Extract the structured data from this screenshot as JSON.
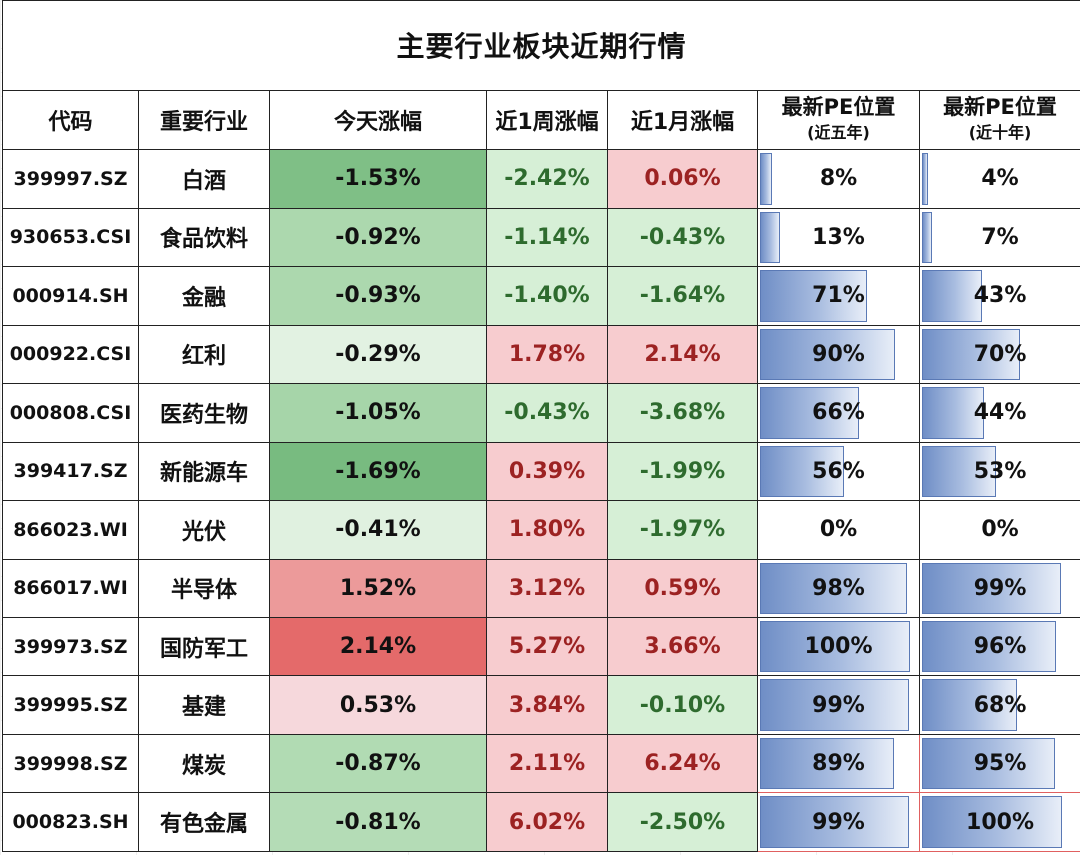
{
  "title": "主要行业板块近期行情",
  "headers": {
    "code": "代码",
    "industry": "重要行业",
    "today": "今天涨幅",
    "week": "近1周涨幅",
    "month": "近1月涨幅",
    "pe5_main": "最新PE位置",
    "pe5_sub": "(近五年)",
    "pe10_main": "最新PE位置",
    "pe10_sub": "(近十年)"
  },
  "colors": {
    "positive_text": "#9c2222",
    "negative_text": "#2e6b2e",
    "bar_fill": "#6f8ec6"
  },
  "rows": [
    {
      "code": "399997.SZ",
      "name": "白酒",
      "today": "-1.53%",
      "week": "-2.42%",
      "month": "0.06%",
      "pe5": "8%",
      "pe10": "4%",
      "pe5_val": 8,
      "pe10_val": 4,
      "today_bg": "#7fbf86",
      "week_bg": "#d6efd6",
      "month_bg": "#f7cccf"
    },
    {
      "code": "930653.CSI",
      "name": "食品饮料",
      "today": "-0.92%",
      "week": "-1.14%",
      "month": "-0.43%",
      "pe5": "13%",
      "pe10": "7%",
      "pe5_val": 13,
      "pe10_val": 7,
      "today_bg": "#acd8ae",
      "week_bg": "#d6efd6",
      "month_bg": "#d6efd6"
    },
    {
      "code": "000914.SH",
      "name": "金融",
      "today": "-0.93%",
      "week": "-1.40%",
      "month": "-1.64%",
      "pe5": "71%",
      "pe10": "43%",
      "pe5_val": 71,
      "pe10_val": 43,
      "today_bg": "#acd8ae",
      "week_bg": "#d6efd6",
      "month_bg": "#d6efd6"
    },
    {
      "code": "000922.CSI",
      "name": "红利",
      "today": "-0.29%",
      "week": "1.78%",
      "month": "2.14%",
      "pe5": "90%",
      "pe10": "70%",
      "pe5_val": 90,
      "pe10_val": 70,
      "today_bg": "#e2f2e2",
      "week_bg": "#f7cccf",
      "month_bg": "#f7cccf"
    },
    {
      "code": "000808.CSI",
      "name": "医药生物",
      "today": "-1.05%",
      "week": "-0.43%",
      "month": "-3.68%",
      "pe5": "66%",
      "pe10": "44%",
      "pe5_val": 66,
      "pe10_val": 44,
      "today_bg": "#a6d5a9",
      "week_bg": "#d6efd6",
      "month_bg": "#d6efd6"
    },
    {
      "code": "399417.SZ",
      "name": "新能源车",
      "today": "-1.69%",
      "week": "0.39%",
      "month": "-1.99%",
      "pe5": "56%",
      "pe10": "53%",
      "pe5_val": 56,
      "pe10_val": 53,
      "today_bg": "#78bb80",
      "week_bg": "#f7cccf",
      "month_bg": "#d6efd6"
    },
    {
      "code": "866023.WI",
      "name": "光伏",
      "today": "-0.41%",
      "week": "1.80%",
      "month": "-1.97%",
      "pe5": "0%",
      "pe10": "0%",
      "pe5_val": 0,
      "pe10_val": 0,
      "today_bg": "#e0f1e0",
      "week_bg": "#f7cccf",
      "month_bg": "#d6efd6"
    },
    {
      "code": "866017.WI",
      "name": "半导体",
      "today": "1.52%",
      "week": "3.12%",
      "month": "0.59%",
      "pe5": "98%",
      "pe10": "99%",
      "pe5_val": 98,
      "pe10_val": 99,
      "today_bg": "#ec9a9a",
      "week_bg": "#f7cccf",
      "month_bg": "#f7cccf"
    },
    {
      "code": "399973.SZ",
      "name": "国防军工",
      "today": "2.14%",
      "week": "5.27%",
      "month": "3.66%",
      "pe5": "100%",
      "pe10": "96%",
      "pe5_val": 100,
      "pe10_val": 96,
      "today_bg": "#e46a6a",
      "week_bg": "#f7cccf",
      "month_bg": "#f7cccf"
    },
    {
      "code": "399995.SZ",
      "name": "基建",
      "today": "0.53%",
      "week": "3.84%",
      "month": "-0.10%",
      "pe5": "99%",
      "pe10": "68%",
      "pe5_val": 99,
      "pe10_val": 68,
      "today_bg": "#f6d8dc",
      "week_bg": "#f7cccf",
      "month_bg": "#d6efd6"
    },
    {
      "code": "399998.SZ",
      "name": "煤炭",
      "today": "-0.87%",
      "week": "2.11%",
      "month": "6.24%",
      "pe5": "89%",
      "pe10": "95%",
      "pe5_val": 89,
      "pe10_val": 95,
      "today_bg": "#b1dbb3",
      "week_bg": "#f7cccf",
      "month_bg": "#f7cccf"
    },
    {
      "code": "000823.SH",
      "name": "有色金属",
      "today": "-0.81%",
      "week": "6.02%",
      "month": "-2.50%",
      "pe5": "99%",
      "pe10": "100%",
      "pe5_val": 99,
      "pe10_val": 100,
      "today_bg": "#b4dcb6",
      "week_bg": "#f7cccf",
      "month_bg": "#d6efd6"
    }
  ]
}
